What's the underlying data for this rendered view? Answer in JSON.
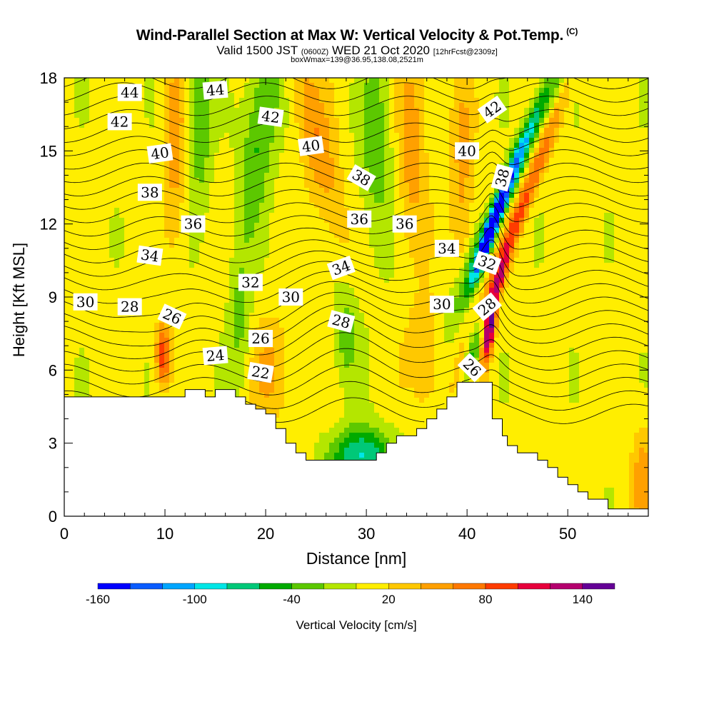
{
  "title": {
    "main": "Wind-Parallel Section at Max W: Vertical Velocity & Pot.Temp.",
    "copyright": "(C)",
    "valid_prefix": "Valid 1500 JST",
    "valid_utc": "(0600Z)",
    "valid_date": "WED 21 Oct 2020",
    "forecast": "[12hrFcst@2309z]",
    "box_info": "boxWmax=139@36.95,138.08,2521m"
  },
  "colors": {
    "frame": "#000000",
    "terrain": "#ffffff",
    "contour": "#000000",
    "ramp": [
      "#0000ff",
      "#0a5cff",
      "#00a6ff",
      "#00e6e6",
      "#00c878",
      "#00aa00",
      "#5cc800",
      "#b4e600",
      "#ffee00",
      "#ffc800",
      "#ffa000",
      "#ff7800",
      "#ff3c00",
      "#e6003c",
      "#b4006e",
      "#640096"
    ]
  },
  "chart_data": {
    "type": "contour",
    "xlabel": "Distance [nm]",
    "ylabel": "Height [Kft MSL]",
    "xlim": [
      0,
      58
    ],
    "ylim": [
      0,
      18
    ],
    "xticks": [
      0,
      10,
      20,
      30,
      40,
      50
    ],
    "yticks": [
      0,
      3,
      6,
      9,
      12,
      15,
      18
    ],
    "colorbar": {
      "label": "Vertical Velocity [cm/s]",
      "ticks": [
        -160,
        -100,
        -40,
        20,
        80,
        140
      ],
      "min": -160,
      "step": 20
    },
    "terrain_profile": [
      [
        0,
        4.9
      ],
      [
        12,
        4.9
      ],
      [
        12,
        5.2
      ],
      [
        14,
        5.2
      ],
      [
        14,
        4.9
      ],
      [
        15,
        4.9
      ],
      [
        15,
        5.2
      ],
      [
        17,
        5.2
      ],
      [
        17,
        4.9
      ],
      [
        18,
        4.9
      ],
      [
        18,
        4.6
      ],
      [
        19,
        4.6
      ],
      [
        19,
        4.4
      ],
      [
        20,
        4.4
      ],
      [
        20,
        4.2
      ],
      [
        21,
        4.2
      ],
      [
        21,
        3.6
      ],
      [
        22,
        3.6
      ],
      [
        22,
        3.0
      ],
      [
        23,
        3.0
      ],
      [
        23,
        2.6
      ],
      [
        24,
        2.6
      ],
      [
        24,
        2.3
      ],
      [
        31,
        2.3
      ],
      [
        31,
        2.6
      ],
      [
        32,
        2.6
      ],
      [
        32,
        3.0
      ],
      [
        33,
        3.0
      ],
      [
        33,
        3.3
      ],
      [
        35,
        3.3
      ],
      [
        35,
        3.6
      ],
      [
        36,
        3.6
      ],
      [
        36,
        4.0
      ],
      [
        37,
        4.0
      ],
      [
        37,
        4.4
      ],
      [
        38,
        4.4
      ],
      [
        38,
        4.9
      ],
      [
        39,
        4.9
      ],
      [
        39,
        5.5
      ],
      [
        42.5,
        5.5
      ],
      [
        42.5,
        4.0
      ],
      [
        43.5,
        4.0
      ],
      [
        43.5,
        3.3
      ],
      [
        44,
        3.3
      ],
      [
        44,
        2.9
      ],
      [
        45,
        2.9
      ],
      [
        45,
        2.6
      ],
      [
        47,
        2.6
      ],
      [
        47,
        2.3
      ],
      [
        48,
        2.3
      ],
      [
        48,
        2.0
      ],
      [
        49,
        2.0
      ],
      [
        49,
        1.6
      ],
      [
        50,
        1.6
      ],
      [
        50,
        1.3
      ],
      [
        51,
        1.3
      ],
      [
        51,
        1.0
      ],
      [
        52,
        1.0
      ],
      [
        52,
        0.7
      ],
      [
        54,
        0.7
      ],
      [
        54,
        0.3
      ],
      [
        58,
        0.3
      ]
    ],
    "velocity_features": [
      {
        "kind": "tilted_band",
        "x": 44.5,
        "y": 14,
        "tiltX": 1.1,
        "sigmaX": 0.7,
        "sigmaY": 4,
        "value": -60
      },
      {
        "kind": "tilted_band",
        "x": 43.5,
        "y": 13,
        "tiltX": 0.9,
        "sigmaX": 0.5,
        "sigmaY": 3,
        "value": -90
      },
      {
        "kind": "tilted_band",
        "x": 42.2,
        "y": 11.5,
        "tiltX": 0.8,
        "sigmaX": 0.35,
        "sigmaY": 1.2,
        "value": -110
      },
      {
        "kind": "tilted_band",
        "x": 45.3,
        "y": 12.5,
        "tiltX": 0.9,
        "sigmaX": 0.6,
        "sigmaY": 3.5,
        "value": 80
      },
      {
        "kind": "tilted_band",
        "x": 42.2,
        "y": 7.6,
        "tiltX": 0.3,
        "sigmaX": 0.4,
        "sigmaY": 1.0,
        "value": 150
      },
      {
        "kind": "tilted_band",
        "x": 43.3,
        "y": 9.8,
        "tiltX": 0.6,
        "sigmaX": 0.35,
        "sigmaY": 0.8,
        "value": 70
      },
      {
        "kind": "tilted_band",
        "x": 40.7,
        "y": 7.0,
        "tiltX": 0.5,
        "sigmaX": 0.5,
        "sigmaY": 0.9,
        "value": -80
      },
      {
        "kind": "tilted_band",
        "x": 9.8,
        "y": 6.6,
        "tiltX": 0,
        "sigmaX": 0.5,
        "sigmaY": 0.9,
        "value": 95
      },
      {
        "kind": "tilted_band",
        "x": 29.5,
        "y": 2.5,
        "tiltX": 0,
        "sigmaX": 2.2,
        "sigmaY": 0.8,
        "value": -90
      },
      {
        "kind": "tilted_band",
        "x": 11,
        "y": 15.5,
        "tiltX": 0,
        "sigmaX": 0.7,
        "sigmaY": 3,
        "value": 45
      },
      {
        "kind": "tilted_band",
        "x": 25,
        "y": 15.5,
        "tiltX": -0.5,
        "sigmaX": 1.2,
        "sigmaY": 3,
        "value": 50
      },
      {
        "kind": "tilted_band",
        "x": 34.5,
        "y": 15,
        "tiltX": 0,
        "sigmaX": 1.0,
        "sigmaY": 3,
        "value": 45
      },
      {
        "kind": "tilted_band",
        "x": 39.5,
        "y": 14,
        "tiltX": 0,
        "sigmaX": 0.8,
        "sigmaY": 3,
        "value": 40
      },
      {
        "kind": "tilted_band",
        "x": 13.5,
        "y": 16.5,
        "tiltX": 0,
        "sigmaX": 0.8,
        "sigmaY": 2.5,
        "value": -50
      },
      {
        "kind": "tilted_band",
        "x": 19.5,
        "y": 16,
        "tiltX": 0.3,
        "sigmaX": 1.2,
        "sigmaY": 3,
        "value": -55
      },
      {
        "kind": "tilted_band",
        "x": 31,
        "y": 15,
        "tiltX": 0,
        "sigmaX": 1.2,
        "sigmaY": 3,
        "value": -40
      },
      {
        "kind": "tilted_band",
        "x": 17.5,
        "y": 8,
        "tiltX": 0,
        "sigmaX": 0.8,
        "sigmaY": 2,
        "value": -35
      },
      {
        "kind": "tilted_band",
        "x": 28,
        "y": 7.5,
        "tiltX": 0,
        "sigmaX": 0.9,
        "sigmaY": 1.5,
        "value": -40
      },
      {
        "kind": "tilted_band",
        "x": 20.5,
        "y": 6,
        "tiltX": 0,
        "sigmaX": 1.5,
        "sigmaY": 1.5,
        "value": 35
      },
      {
        "kind": "tilted_band",
        "x": 36,
        "y": 6.5,
        "tiltX": 0,
        "sigmaX": 1.2,
        "sigmaY": 1.5,
        "value": 40
      },
      {
        "kind": "tilted_band",
        "x": 57.5,
        "y": 1.5,
        "tiltX": 0,
        "sigmaX": 0.8,
        "sigmaY": 1.5,
        "value": 45
      }
    ],
    "contour_labels": [
      {
        "text": "44",
        "x": 6.5,
        "y": 17.4,
        "angle": 0
      },
      {
        "text": "44",
        "x": 15,
        "y": 17.5,
        "angle": -5
      },
      {
        "text": "42",
        "x": 5.5,
        "y": 16.2,
        "angle": 0
      },
      {
        "text": "42",
        "x": 20.5,
        "y": 16.4,
        "angle": 8
      },
      {
        "text": "42",
        "x": 42.5,
        "y": 16.7,
        "angle": -35
      },
      {
        "text": "40",
        "x": 9.5,
        "y": 14.9,
        "angle": -8
      },
      {
        "text": "40",
        "x": 24.5,
        "y": 15.2,
        "angle": -8
      },
      {
        "text": "40",
        "x": 40,
        "y": 15.0,
        "angle": 0
      },
      {
        "text": "38",
        "x": 8.5,
        "y": 13.3,
        "angle": 0
      },
      {
        "text": "38",
        "x": 29.5,
        "y": 13.9,
        "angle": 30
      },
      {
        "text": "38",
        "x": 43.5,
        "y": 13.9,
        "angle": -75
      },
      {
        "text": "36",
        "x": 12.8,
        "y": 12.0,
        "angle": 0
      },
      {
        "text": "36",
        "x": 29.3,
        "y": 12.2,
        "angle": 0
      },
      {
        "text": "36",
        "x": 33.8,
        "y": 12.0,
        "angle": 0
      },
      {
        "text": "34",
        "x": 8.5,
        "y": 10.7,
        "angle": 8
      },
      {
        "text": "34",
        "x": 27.5,
        "y": 10.2,
        "angle": -20
      },
      {
        "text": "34",
        "x": 38,
        "y": 11.0,
        "angle": 0
      },
      {
        "text": "32",
        "x": 18.5,
        "y": 9.6,
        "angle": 0
      },
      {
        "text": "32",
        "x": 42,
        "y": 10.4,
        "angle": 20
      },
      {
        "text": "30",
        "x": 2.1,
        "y": 8.8,
        "angle": 0
      },
      {
        "text": "30",
        "x": 22.5,
        "y": 9.0,
        "angle": 0
      },
      {
        "text": "30",
        "x": 37.5,
        "y": 8.7,
        "angle": 0
      },
      {
        "text": "28",
        "x": 6.5,
        "y": 8.6,
        "angle": 0
      },
      {
        "text": "28",
        "x": 27.5,
        "y": 8.0,
        "angle": 15
      },
      {
        "text": "28",
        "x": 42,
        "y": 8.6,
        "angle": -40
      },
      {
        "text": "26",
        "x": 10.7,
        "y": 8.2,
        "angle": 25
      },
      {
        "text": "26",
        "x": 19.5,
        "y": 7.3,
        "angle": 0
      },
      {
        "text": "26",
        "x": 40.5,
        "y": 6.1,
        "angle": 45
      },
      {
        "text": "24",
        "x": 15,
        "y": 6.6,
        "angle": -5
      },
      {
        "text": "22",
        "x": 19.5,
        "y": 5.9,
        "angle": 10
      }
    ]
  }
}
